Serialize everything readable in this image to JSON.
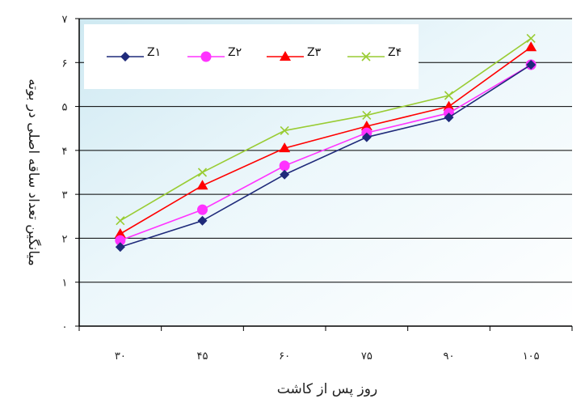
{
  "chart_data": {
    "type": "line",
    "xlabel": "روز پس از کاشت",
    "ylabel": "میانگین تعداد ساقه اصلی در بوته",
    "categories": [
      "۳۰",
      "۴۵",
      "۶۰",
      "۷۵",
      "۹۰",
      "۱۰۵"
    ],
    "y_ticks": [
      "۰",
      "۱",
      "۲",
      "۳",
      "۴",
      "۵",
      "۶",
      "۷"
    ],
    "ylim": [
      0,
      7
    ],
    "grid": "horizontal",
    "legend_position": "top-left",
    "series": [
      {
        "name": "Z۱",
        "marker": "diamond",
        "color": "#1f2a7a",
        "values": [
          1.8,
          2.4,
          3.45,
          4.3,
          4.75,
          5.95
        ]
      },
      {
        "name": "Z۲",
        "marker": "circle",
        "color": "#ff33ff",
        "values": [
          1.95,
          2.65,
          3.65,
          4.4,
          4.85,
          5.95
        ]
      },
      {
        "name": "Z۳",
        "marker": "triangle",
        "color": "#ff0000",
        "values": [
          2.1,
          3.2,
          4.05,
          4.55,
          5.0,
          6.35
        ]
      },
      {
        "name": "Z۴",
        "marker": "x",
        "color": "#99cc33",
        "values": [
          2.4,
          3.5,
          4.45,
          4.8,
          5.25,
          6.55
        ]
      }
    ]
  }
}
